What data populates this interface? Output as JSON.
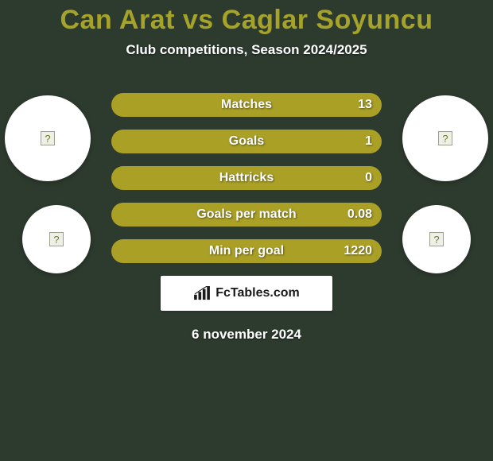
{
  "background_color": "#2d3a2e",
  "title": {
    "text": "Can Arat vs Caglar Soyuncu",
    "color": "#a6a32a",
    "fontsize": 34
  },
  "subtitle": "Club competitions, Season 2024/2025",
  "bars": {
    "bar_color": "#aba026",
    "track_color": "#2b382c",
    "label_color": "#ffffff",
    "items": [
      {
        "label": "Matches",
        "value": "13",
        "fill_pct": 100
      },
      {
        "label": "Goals",
        "value": "1",
        "fill_pct": 100
      },
      {
        "label": "Hattricks",
        "value": "0",
        "fill_pct": 100
      },
      {
        "label": "Goals per match",
        "value": "0.08",
        "fill_pct": 100
      },
      {
        "label": "Min per goal",
        "value": "1220",
        "fill_pct": 100
      }
    ]
  },
  "footer": {
    "brand": "FcTables.com"
  },
  "date": "6 november 2024"
}
